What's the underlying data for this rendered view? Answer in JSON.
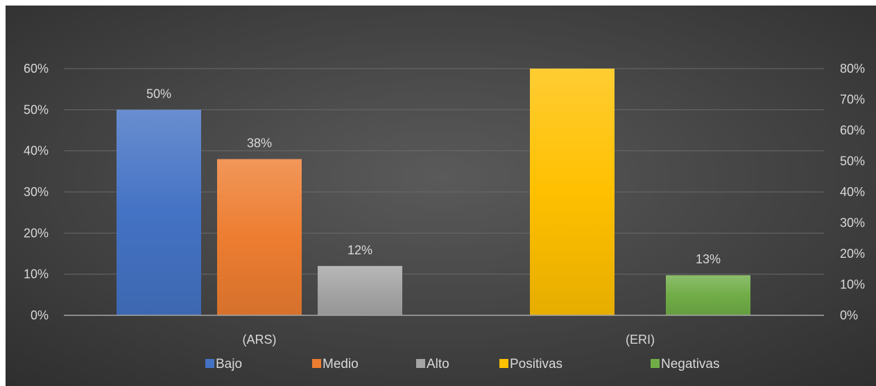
{
  "chart_data": {
    "type": "bar",
    "categories": [
      "(ARS)",
      "(ERI)"
    ],
    "left_axis": {
      "ticks": [
        "0%",
        "10%",
        "20%",
        "30%",
        "40%",
        "50%",
        "60%"
      ],
      "ylim": [
        0,
        60
      ]
    },
    "right_axis": {
      "ticks": [
        "0%",
        "10%",
        "20%",
        "30%",
        "40%",
        "50%",
        "60%",
        "70%",
        "80%"
      ],
      "ylim": [
        0,
        80
      ]
    },
    "series": [
      {
        "name": "Bajo",
        "category": "(ARS)",
        "axis": "left",
        "value": 50,
        "label": "50%",
        "color": "#4472c4"
      },
      {
        "name": "Medio",
        "category": "(ARS)",
        "axis": "left",
        "value": 38,
        "label": "38%",
        "color": "#ed7d31"
      },
      {
        "name": "Alto",
        "category": "(ARS)",
        "axis": "left",
        "value": 12,
        "label": "12%",
        "color": "#a5a5a5"
      },
      {
        "name": "Positivas",
        "category": "(ERI)",
        "axis": "right",
        "value": 87,
        "label": "",
        "color": "#ffc000"
      },
      {
        "name": "Negativas",
        "category": "(ERI)",
        "axis": "right",
        "value": 13,
        "label": "13%",
        "color": "#70ad47"
      }
    ],
    "legend": [
      "Bajo",
      "Medio",
      "Alto",
      "Positivas",
      "Negativas"
    ],
    "legend_position": "bottom",
    "grid": true,
    "background": "#404040"
  }
}
